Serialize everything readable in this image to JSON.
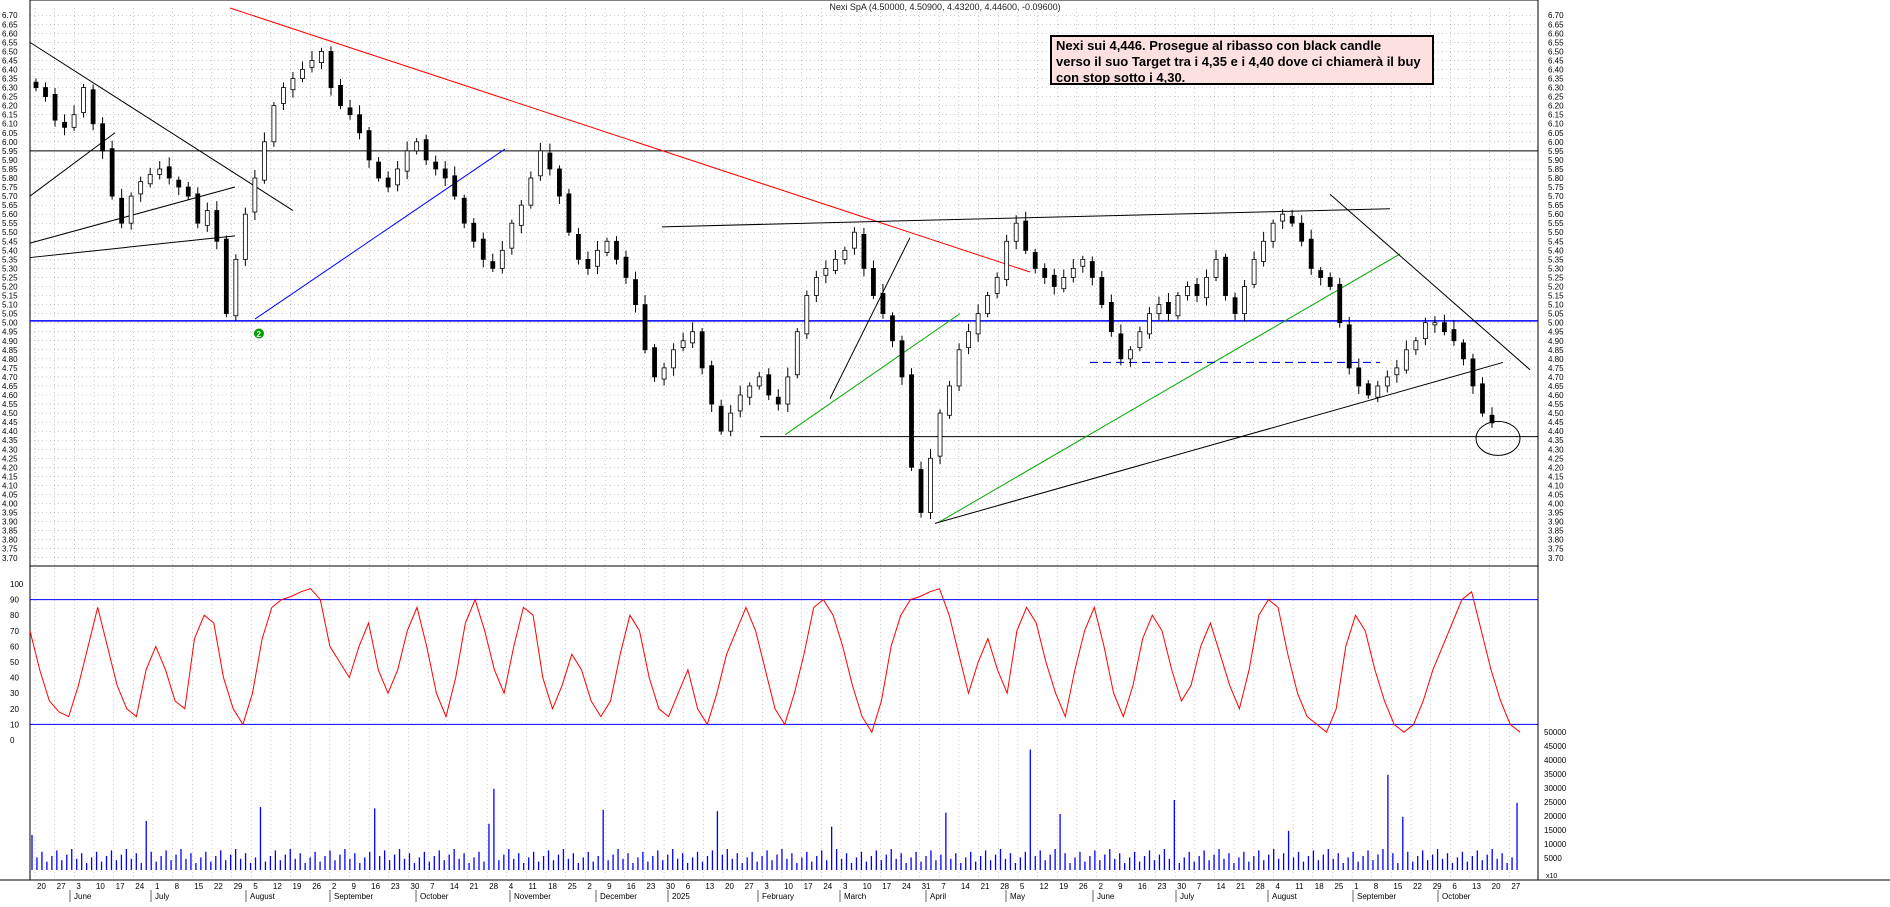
{
  "header": {
    "title": "Nexi SpA (4.50000, 4.50900, 4.43200, 4.44600, -0.09600)"
  },
  "annotation": {
    "line1": "Nexi sui 4,446. Prosegue al ribasso con black candle",
    "line2": "verso il suo Target tra i 4,35 e i 4,40 dove ci chiamerà il buy",
    "line3": "con stop sotto i 4,30."
  },
  "marker_label": "2",
  "colors": {
    "candle": "#000000",
    "red_trend": "#ff0000",
    "blue": "#0000ff",
    "green": "#00aa00",
    "oscillator": "#ff0000",
    "volume": "#0000ff",
    "grid": "#999999",
    "marker": "#00a000"
  },
  "x_axis": {
    "day_ticks": [
      "20",
      "27",
      "3",
      "10",
      "17",
      "24",
      "1",
      "8",
      "15",
      "22",
      "29",
      "5",
      "12",
      "19",
      "26",
      "2",
      "9",
      "16",
      "23",
      "30",
      "7",
      "14",
      "21",
      "28",
      "4",
      "11",
      "18",
      "25",
      "2",
      "9",
      "16",
      "23",
      "30",
      "6",
      "13",
      "20",
      "27",
      "3",
      "10",
      "17",
      "24",
      "3",
      "10",
      "17",
      "24",
      "31",
      "7",
      "14",
      "21",
      "28",
      "5",
      "12",
      "19",
      "26",
      "2",
      "9",
      "16",
      "23",
      "30",
      "7",
      "14",
      "21",
      "28",
      "4",
      "11",
      "18",
      "25",
      "1",
      "8",
      "15",
      "22",
      "29",
      "6",
      "13",
      "20",
      "27"
    ],
    "month_labels": [
      "June",
      "July",
      "August",
      "September",
      "October",
      "November",
      "December",
      "2025",
      "February",
      "March",
      "April",
      "May",
      "June",
      "July",
      "August",
      "September",
      "October"
    ],
    "volume_unit_label": "x10"
  },
  "chart_data": [
    {
      "type": "candlestick",
      "title": "Nexi SpA (4.50000, 4.50900, 4.43200, 4.44600, -0.09600)",
      "ylim": [
        3.66,
        6.74
      ],
      "y_ticks": [
        6.7,
        6.65,
        6.6,
        6.55,
        6.5,
        6.45,
        6.4,
        6.35,
        6.3,
        6.25,
        6.2,
        6.15,
        6.1,
        6.05,
        6.0,
        5.95,
        5.9,
        5.85,
        5.8,
        5.75,
        5.7,
        5.65,
        5.6,
        5.55,
        5.5,
        5.45,
        5.4,
        5.35,
        5.3,
        5.25,
        5.2,
        5.15,
        5.1,
        5.05,
        5.0,
        4.95,
        4.9,
        4.85,
        4.8,
        4.75,
        4.7,
        4.65,
        4.6,
        4.55,
        4.5,
        4.45,
        4.4,
        4.35,
        4.3,
        4.25,
        4.2,
        4.15,
        4.1,
        4.05,
        4.0,
        3.95,
        3.9,
        3.85,
        3.8,
        3.75,
        3.7
      ],
      "last_bar": {
        "open": 4.5,
        "high": 4.509,
        "low": 4.432,
        "close": 4.446,
        "change": -0.096
      },
      "close_path": [
        6.3,
        6.25,
        6.12,
        6.08,
        6.15,
        6.3,
        6.1,
        5.95,
        5.7,
        5.55,
        5.7,
        5.78,
        5.82,
        5.85,
        5.8,
        5.75,
        5.7,
        5.55,
        5.62,
        5.45,
        5.05,
        5.35,
        5.6,
        5.8,
        6.0,
        6.2,
        6.3,
        6.35,
        6.4,
        6.45,
        6.5,
        6.3,
        6.2,
        6.15,
        6.05,
        5.9,
        5.8,
        5.75,
        5.85,
        5.95,
        6.0,
        5.9,
        5.85,
        5.8,
        5.7,
        5.55,
        5.45,
        5.35,
        5.3,
        5.4,
        5.55,
        5.65,
        5.8,
        5.95,
        5.85,
        5.7,
        5.5,
        5.35,
        5.3,
        5.4,
        5.45,
        5.35,
        5.25,
        5.1,
        4.85,
        4.7,
        4.75,
        4.85,
        4.9,
        4.95,
        4.75,
        4.55,
        4.4,
        4.5,
        4.6,
        4.65,
        4.7,
        4.6,
        4.55,
        4.7,
        4.95,
        5.15,
        5.25,
        5.3,
        5.35,
        5.4,
        5.5,
        5.3,
        5.15,
        5.05,
        4.9,
        4.7,
        4.2,
        3.95,
        4.25,
        4.5,
        4.65,
        4.85,
        4.95,
        5.05,
        5.15,
        5.25,
        5.45,
        5.55,
        5.4,
        5.3,
        5.25,
        5.2,
        5.25,
        5.3,
        5.35,
        5.25,
        5.1,
        4.95,
        4.8,
        4.85,
        4.95,
        5.05,
        5.1,
        5.05,
        5.15,
        5.2,
        5.15,
        5.25,
        5.35,
        5.15,
        5.05,
        5.2,
        5.35,
        5.45,
        5.55,
        5.6,
        5.55,
        5.45,
        5.3,
        5.25,
        5.2,
        5.0,
        4.75,
        4.65,
        4.6,
        4.65,
        4.7,
        4.75,
        4.85,
        4.9,
        5.0,
        5.0,
        4.95,
        4.9,
        4.8,
        4.65,
        4.5,
        4.446
      ],
      "hlines": [
        5.95,
        5.01,
        4.37
      ],
      "horizontal_levels_labeled": {
        "support_blue": 5.01,
        "target_low": 4.35,
        "target_high": 4.4,
        "stop": 4.3
      }
    },
    {
      "type": "line",
      "series": [
        {
          "values": [
            70,
            45,
            25,
            18,
            15,
            35,
            60,
            85,
            60,
            35,
            20,
            15,
            45,
            60,
            45,
            25,
            20,
            65,
            80,
            75,
            40,
            20,
            10,
            30,
            65,
            85,
            90,
            92,
            95,
            97,
            90,
            60,
            50,
            40,
            60,
            75,
            45,
            30,
            45,
            70,
            85,
            60,
            30,
            15,
            40,
            75,
            90,
            70,
            45,
            30,
            60,
            85,
            80,
            40,
            20,
            35,
            55,
            45,
            25,
            15,
            25,
            55,
            80,
            70,
            40,
            20,
            15,
            30,
            45,
            20,
            10,
            30,
            55,
            70,
            85,
            70,
            45,
            20,
            10,
            30,
            55,
            85,
            90,
            80,
            60,
            35,
            15,
            5,
            25,
            60,
            80,
            90,
            92,
            95,
            97,
            80,
            55,
            30,
            50,
            65,
            45,
            30,
            70,
            85,
            75,
            50,
            30,
            15,
            45,
            70,
            85,
            60,
            30,
            15,
            35,
            65,
            80,
            70,
            45,
            25,
            35,
            60,
            75,
            55,
            35,
            20,
            45,
            80,
            90,
            85,
            55,
            30,
            15,
            10,
            5,
            20,
            60,
            80,
            70,
            45,
            25,
            10,
            5,
            10,
            25,
            45,
            60,
            75,
            90,
            95,
            70,
            45,
            25,
            10,
            5
          ]
        }
      ],
      "ylim": [
        0,
        100
      ],
      "y_ticks": [
        100,
        90,
        80,
        70,
        60,
        50,
        40,
        30,
        20,
        10,
        0
      ],
      "hlines": [
        90,
        10
      ]
    },
    {
      "type": "bar",
      "title": "Volume",
      "ylim": [
        0,
        50000
      ],
      "y_ticks": [
        50000,
        45000,
        40000,
        35000,
        30000,
        25000,
        20000,
        15000,
        10000,
        5000
      ],
      "unit": "x10"
    }
  ]
}
